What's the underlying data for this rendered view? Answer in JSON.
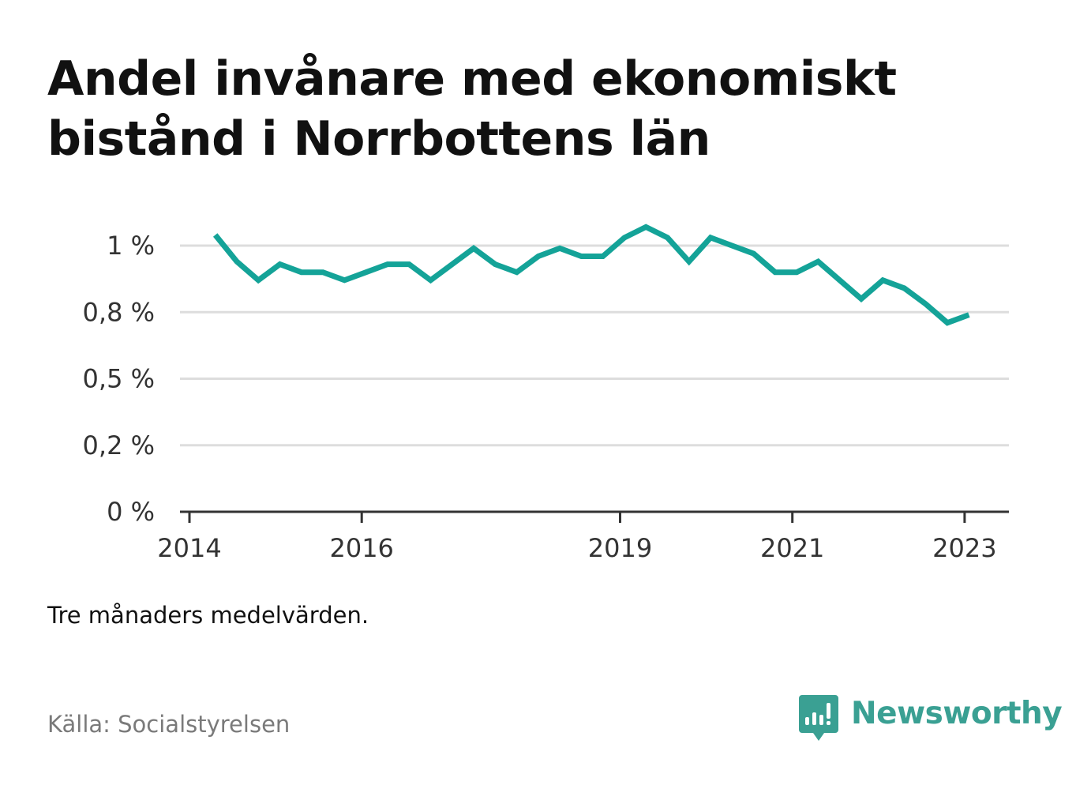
{
  "title_line1": "Andel invånare med ekonomiskt",
  "title_line2": "bistånd i Norrbottens län",
  "note": "Tre månaders medelvärden.",
  "source": "Källa: Socialstyrelsen",
  "brand": {
    "name": "Newsworthy",
    "icon": "newsworthy-logo-icon",
    "color": "#3aa093"
  },
  "colors": {
    "line": "#14a398",
    "grid": "#dddddd",
    "axis": "#333333"
  },
  "chart_data": {
    "type": "line",
    "title": "Andel invånare med ekonomiskt bistånd i Norrbottens län",
    "xlabel": "",
    "ylabel": "",
    "xlim": [
      2014.0,
      2023.5
    ],
    "ylim": [
      0,
      1.0
    ],
    "x_ticks": [
      {
        "value": 2014,
        "label": "2014"
      },
      {
        "value": 2016,
        "label": "2016"
      },
      {
        "value": 2019,
        "label": "2019"
      },
      {
        "value": 2021,
        "label": "2021"
      },
      {
        "value": 2023,
        "label": "2023"
      }
    ],
    "y_ticks": [
      {
        "value": 0,
        "label": "0 %"
      },
      {
        "value": 0.25,
        "label": "0,2 %"
      },
      {
        "value": 0.5,
        "label": "0,5 %"
      },
      {
        "value": 0.75,
        "label": "0,8 %"
      },
      {
        "value": 1.0,
        "label": "1 %"
      }
    ],
    "grid": true,
    "series": [
      {
        "x": [
          2014.3,
          2014.55,
          2014.8,
          2015.05,
          2015.3,
          2015.55,
          2015.8,
          2016.05,
          2016.3,
          2016.55,
          2016.8,
          2017.05,
          2017.3,
          2017.55,
          2017.8,
          2018.05,
          2018.3,
          2018.55,
          2018.8,
          2019.05,
          2019.3,
          2019.55,
          2019.8,
          2020.05,
          2020.3,
          2020.55,
          2020.8,
          2021.05,
          2021.3,
          2021.55,
          2021.8,
          2022.05,
          2022.3,
          2022.55,
          2022.8,
          2023.05
        ],
        "values": [
          1.04,
          0.94,
          0.87,
          0.93,
          0.9,
          0.9,
          0.87,
          0.9,
          0.93,
          0.93,
          0.87,
          0.93,
          0.99,
          0.93,
          0.9,
          0.96,
          0.99,
          0.96,
          0.96,
          1.03,
          1.07,
          1.03,
          0.94,
          1.03,
          1.0,
          0.97,
          0.9,
          0.9,
          0.94,
          0.87,
          0.8,
          0.87,
          0.84,
          0.78,
          0.71,
          0.74
        ]
      }
    ]
  }
}
